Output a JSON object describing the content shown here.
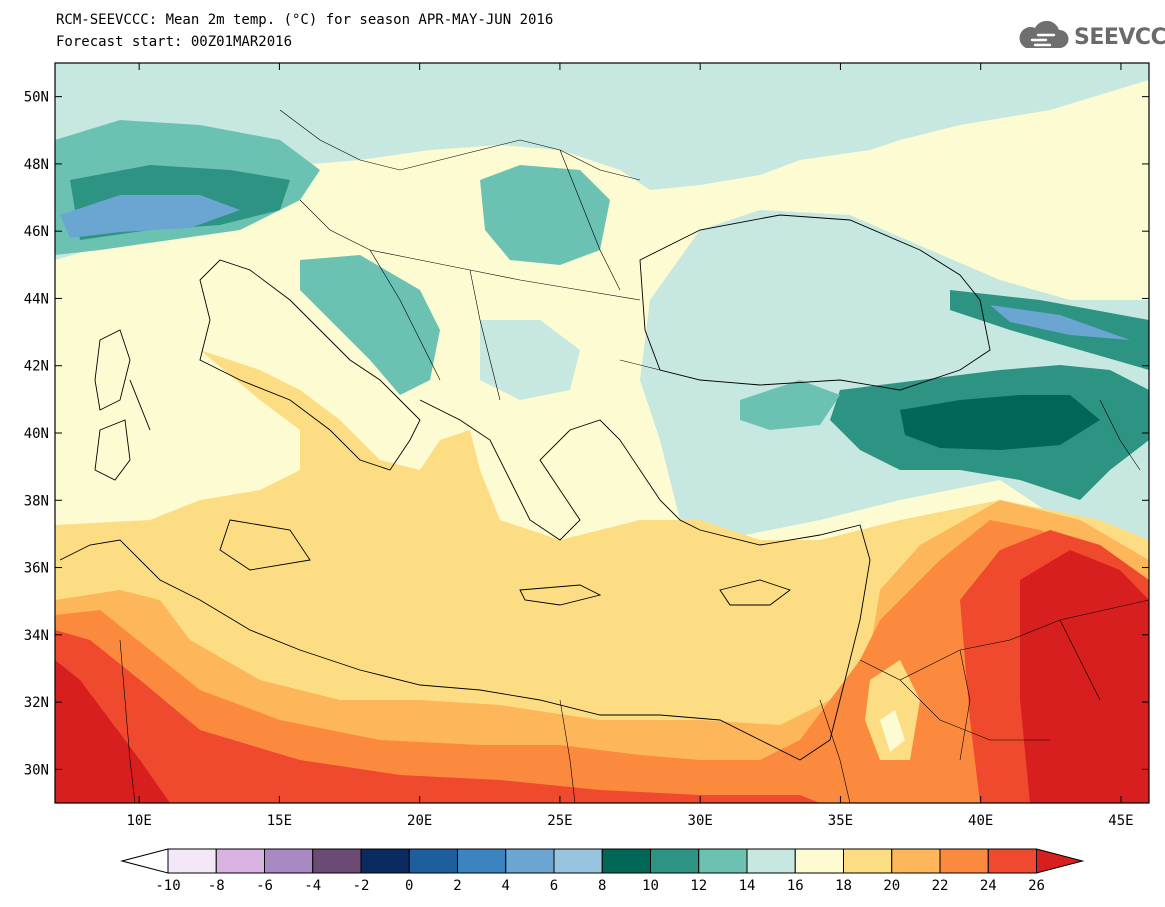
{
  "title": {
    "line1": "RCM-SEEVCCC: Mean 2m temp. (°C) for season APR-MAY-JUN 2016",
    "line2": "Forecast start: 00Z01MAR2016"
  },
  "logo": {
    "text": "SEEVCCC",
    "icon": "cloud-logo-icon"
  },
  "map": {
    "lat_range": [
      29,
      51
    ],
    "lon_range": [
      7,
      46
    ],
    "lat_ticks": [
      "30N",
      "32N",
      "34N",
      "36N",
      "38N",
      "40N",
      "42N",
      "44N",
      "46N",
      "48N",
      "50N"
    ],
    "lon_ticks": [
      "10E",
      "15E",
      "20E",
      "25E",
      "30E",
      "35E",
      "40E",
      "45E"
    ]
  },
  "colorbar": {
    "labels": [
      "-10",
      "-8",
      "-6",
      "-4",
      "-2",
      "0",
      "2",
      "4",
      "6",
      "8",
      "10",
      "12",
      "14",
      "16",
      "18",
      "20",
      "22",
      "24",
      "26"
    ],
    "colors": [
      "#f3e8f7",
      "#d8b2e0",
      "#a889c3",
      "#6b4a73",
      "#0a2a60",
      "#1f5e9c",
      "#3c84c0",
      "#6ba6d2",
      "#98c4e0",
      "#006655",
      "#2d9382",
      "#6cc2b2",
      "#c6e8e1",
      "#fdfbd1",
      "#fddd84",
      "#fdb65a",
      "#fb8a3e",
      "#f04a2e"
    ],
    "under_color": "#ffffff",
    "over_color": "#d81f1f"
  }
}
